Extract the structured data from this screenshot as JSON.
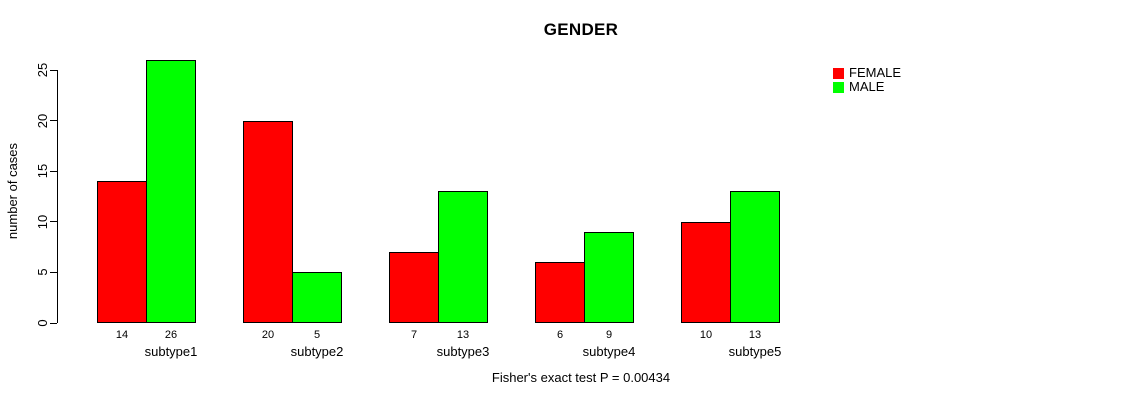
{
  "chart_data": {
    "type": "bar",
    "grouped": true,
    "title": "GENDER",
    "categories": [
      "subtype1",
      "subtype2",
      "subtype3",
      "subtype4",
      "subtype5"
    ],
    "series": [
      {
        "name": "FEMALE",
        "color": "#FF0000",
        "values": [
          14,
          20,
          7,
          6,
          10
        ]
      },
      {
        "name": "MALE",
        "color": "#00FF00",
        "values": [
          26,
          5,
          13,
          9,
          13
        ]
      }
    ],
    "xlabel": "",
    "ylabel": "number of cases",
    "ylim": [
      0,
      26
    ],
    "y_ticks": [
      0,
      5,
      10,
      15,
      20,
      25
    ],
    "bar_value_labels_shown": true,
    "grid": false,
    "legend_position": "top-right",
    "annotation": "Fisher's exact test P = 0.00434",
    "background_color": "#FFFFFF",
    "axis_color": "#000000",
    "bar_border_color": "#000000"
  }
}
